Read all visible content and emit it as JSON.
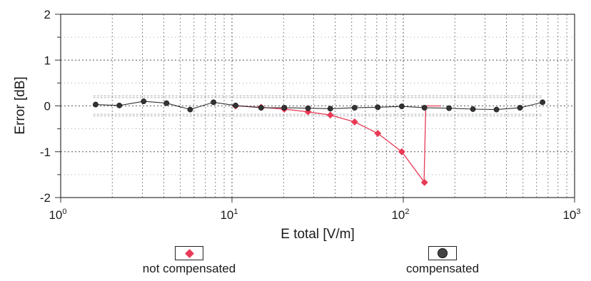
{
  "chart_data": {
    "type": "line",
    "xscale": "log",
    "xlim": [
      1,
      1000
    ],
    "ylim": [
      -2,
      2
    ],
    "xlabel": "E total [V/m]",
    "ylabel": "Error [dB]",
    "x_ticks": [
      {
        "base": "10",
        "exp": "0"
      },
      {
        "base": "10",
        "exp": "1"
      },
      {
        "base": "10",
        "exp": "2"
      },
      {
        "base": "10",
        "exp": "3"
      }
    ],
    "y_ticks": [
      "2",
      "1",
      "0",
      "-1",
      "-2"
    ],
    "grid": true,
    "legend_position": "bottom",
    "series": [
      {
        "name": "not compensated",
        "color": "#e83a56",
        "marker": "diamond",
        "x": [
          10.5,
          14.8,
          20.2,
          27.8,
          37.5,
          52,
          71,
          98,
          133
        ],
        "y": [
          0.0,
          -0.03,
          -0.07,
          -0.13,
          -0.2,
          -0.35,
          -0.6,
          -1.0,
          -1.67
        ]
      },
      {
        "name": "compensated",
        "color": "#333333",
        "marker": "circle",
        "x": [
          1.6,
          2.2,
          3.05,
          4.15,
          5.7,
          7.8,
          10.5,
          14.8,
          20.2,
          27.8,
          37.5,
          52,
          71,
          98,
          133,
          185,
          255,
          350,
          480,
          650
        ],
        "y": [
          0.03,
          0.01,
          0.1,
          0.06,
          -0.08,
          0.08,
          0.01,
          -0.04,
          -0.04,
          -0.05,
          -0.06,
          -0.04,
          -0.03,
          -0.01,
          -0.04,
          -0.05,
          -0.07,
          -0.08,
          -0.04,
          0.08
        ]
      }
    ]
  }
}
